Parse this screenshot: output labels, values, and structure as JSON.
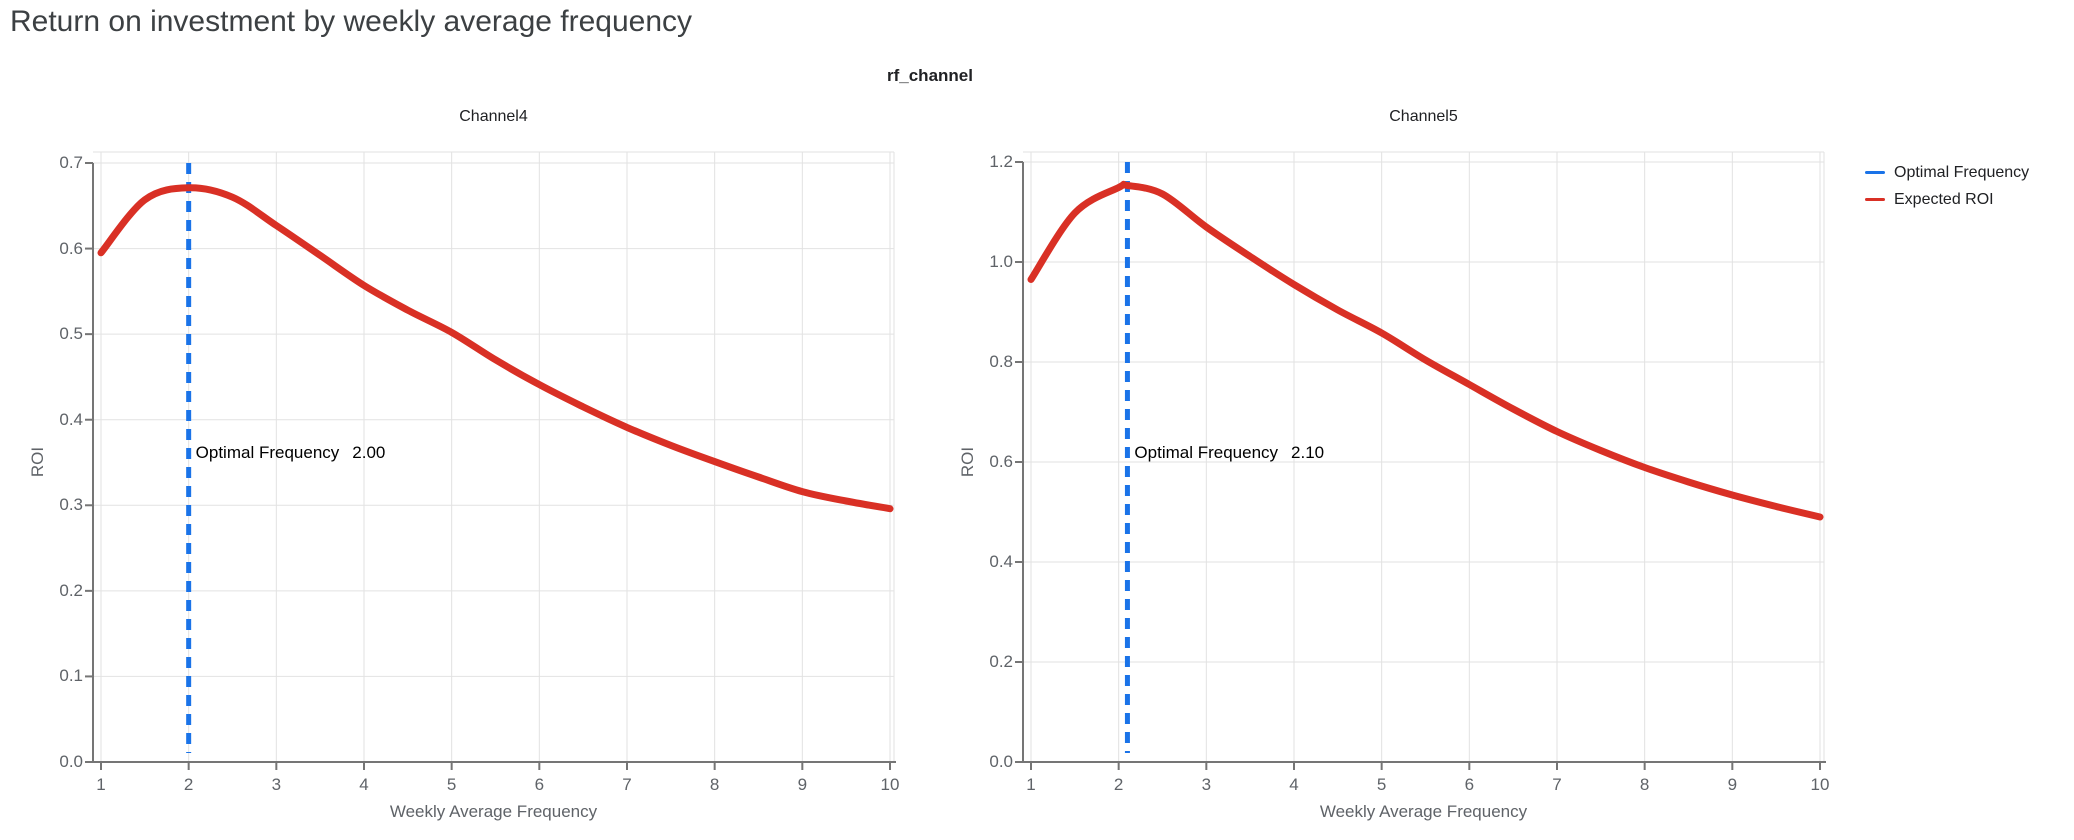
{
  "page": {
    "title": "Return on investment by weekly average frequency"
  },
  "facet": {
    "title": "rf_channel"
  },
  "legend": {
    "items": [
      {
        "label": "Optimal Frequency",
        "color": "#1a73e8"
      },
      {
        "label": "Expected ROI",
        "color": "#d93025"
      }
    ]
  },
  "chart_data": [
    {
      "type": "line",
      "title": "Channel4",
      "xlabel": "Weekly Average Frequency",
      "ylabel": "ROI",
      "xlim": [
        0.91,
        10.05
      ],
      "ylim": [
        0,
        0.7
      ],
      "xticks": [
        "1",
        "2",
        "3",
        "4",
        "5",
        "6",
        "7",
        "8",
        "9",
        "10"
      ],
      "yticks": [
        "0.0",
        "0.1",
        "0.2",
        "0.3",
        "0.4",
        "0.5",
        "0.6",
        "0.7"
      ],
      "grid": true,
      "series": [
        {
          "name": "Expected ROI",
          "color": "#d93025",
          "x": [
            1,
            1.5,
            2,
            2.5,
            3,
            3.5,
            4,
            4.5,
            5,
            5.5,
            6,
            6.5,
            7,
            7.5,
            8,
            8.5,
            9,
            9.5,
            10
          ],
          "y": [
            0.595,
            0.657,
            0.671,
            0.66,
            0.627,
            0.592,
            0.557,
            0.528,
            0.502,
            0.47,
            0.441,
            0.415,
            0.391,
            0.37,
            0.351,
            0.333,
            0.316,
            0.305,
            0.296
          ]
        }
      ],
      "optimal_frequency": {
        "x": 2.0,
        "color": "#1a73e8",
        "annotation_label": "Optimal Frequency",
        "annotation_value": "2.00"
      }
    },
    {
      "type": "line",
      "title": "Channel5",
      "xlabel": "Weekly Average Frequency",
      "ylabel": "ROI",
      "xlim": [
        0.91,
        10.05
      ],
      "ylim": [
        0,
        1.2
      ],
      "xticks": [
        "1",
        "2",
        "3",
        "4",
        "5",
        "6",
        "7",
        "8",
        "9",
        "10"
      ],
      "yticks": [
        "0.0",
        "0.2",
        "0.4",
        "0.6",
        "0.8",
        "1.0",
        "1.2"
      ],
      "grid": true,
      "series": [
        {
          "name": "Expected ROI",
          "color": "#d93025",
          "x": [
            1,
            1.5,
            2,
            2.1,
            2.5,
            3,
            3.5,
            4,
            4.5,
            5,
            5.5,
            6,
            6.5,
            7,
            7.5,
            8,
            8.5,
            9,
            9.5,
            10
          ],
          "y": [
            0.965,
            1.098,
            1.149,
            1.153,
            1.136,
            1.07,
            1.011,
            0.955,
            0.904,
            0.858,
            0.804,
            0.755,
            0.706,
            0.661,
            0.623,
            0.589,
            0.56,
            0.534,
            0.511,
            0.49
          ]
        }
      ],
      "optimal_frequency": {
        "x": 2.1,
        "color": "#1a73e8",
        "annotation_label": "Optimal Frequency",
        "annotation_value": "2.10"
      }
    }
  ],
  "style": {
    "grid_color": "#e2e2e2",
    "spine_color": "#757575",
    "tick_label_color": "#5f6368"
  }
}
